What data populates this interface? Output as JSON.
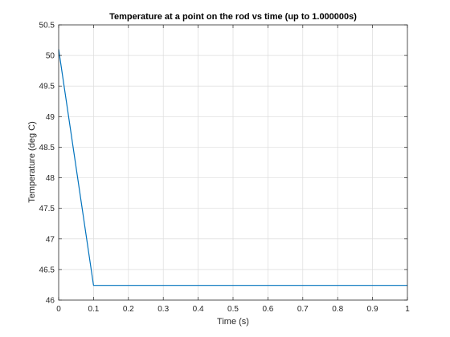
{
  "chart_data": {
    "type": "line",
    "title": "Temperature at a point on the rod vs time (up to 1.000000s)",
    "xlabel": "Time (s)",
    "ylabel": "Temperature (deg C)",
    "xlim": [
      0,
      1
    ],
    "ylim": [
      46,
      50.5
    ],
    "xticks": [
      0,
      0.1,
      0.2,
      0.3,
      0.4,
      0.5,
      0.6,
      0.7,
      0.8,
      0.9,
      1
    ],
    "xtick_labels": [
      "0",
      "0.1",
      "0.2",
      "0.3",
      "0.4",
      "0.5",
      "0.6",
      "0.7",
      "0.8",
      "0.9",
      "1"
    ],
    "yticks": [
      46,
      46.5,
      47,
      47.5,
      48,
      48.5,
      49,
      49.5,
      50,
      50.5
    ],
    "ytick_labels": [
      "46",
      "46.5",
      "47",
      "47.5",
      "48",
      "48.5",
      "49",
      "49.5",
      "50",
      "50.5"
    ],
    "grid": true,
    "series": [
      {
        "color": "#0072BD",
        "x": [
          0,
          0.1,
          1
        ],
        "y": [
          50.1,
          46.24,
          46.24
        ]
      }
    ]
  }
}
